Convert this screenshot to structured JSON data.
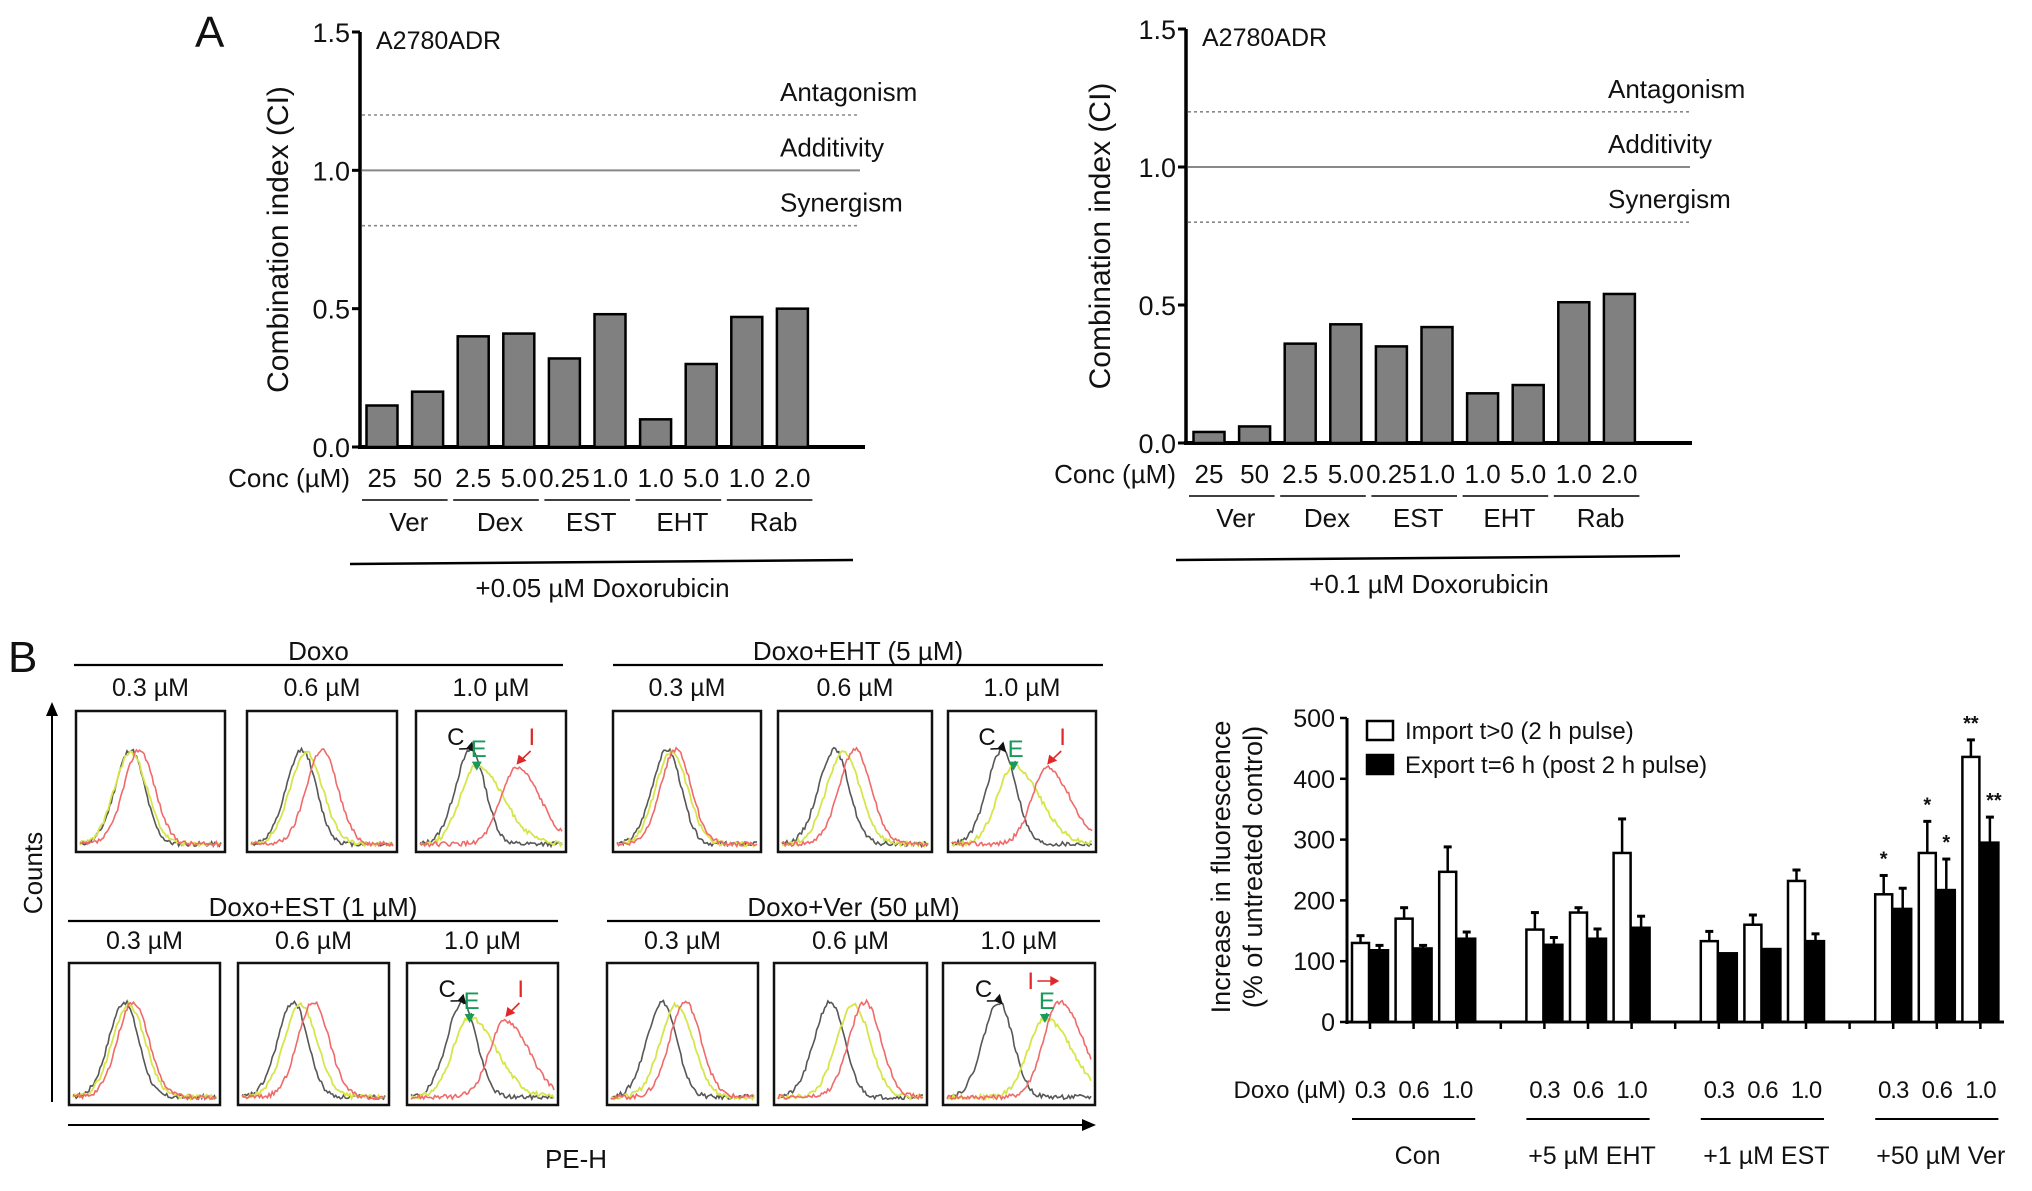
{
  "panel_labels": {
    "a": "A",
    "b": "B"
  },
  "chart_data": [
    {
      "id": "A-left",
      "type": "bar",
      "title": "A2780ADR",
      "ylabel": "Combination index (CI)",
      "ylim": [
        0,
        1.5
      ],
      "yticks": [
        "0.0",
        "0.5",
        "1.0",
        "1.5"
      ],
      "ytick_values": [
        0,
        0.5,
        1.0,
        1.5
      ],
      "xlabel_prefix": "Conc (µM)",
      "categories": [
        "25",
        "50",
        "2.5",
        "5.0",
        "0.25",
        "1.0",
        "1.0",
        "5.0",
        "1.0",
        "2.0"
      ],
      "groups": [
        "Ver",
        "Dex",
        "EST",
        "EHT",
        "Rab"
      ],
      "treatment": "+0.05 µM Doxorubicin",
      "values": [
        0.15,
        0.2,
        0.4,
        0.41,
        0.32,
        0.48,
        0.1,
        0.3,
        0.47,
        0.5
      ],
      "reference_lines": [
        {
          "label": "Antagonism",
          "value": 1.2,
          "style": "dotted"
        },
        {
          "label": "Additivity",
          "value": 1.0,
          "style": "solid"
        },
        {
          "label": "Synergism",
          "value": 0.8,
          "style": "dotted"
        }
      ],
      "bar_color": "#808080",
      "grid": false
    },
    {
      "id": "A-right",
      "type": "bar",
      "title": "A2780ADR",
      "ylabel": "Combination index (CI)",
      "ylim": [
        0,
        1.5
      ],
      "yticks": [
        "0.0",
        "0.5",
        "1.0",
        "1.5"
      ],
      "ytick_values": [
        0,
        0.5,
        1.0,
        1.5
      ],
      "xlabel_prefix": "Conc (µM)",
      "categories": [
        "25",
        "50",
        "2.5",
        "5.0",
        "0.25",
        "1.0",
        "1.0",
        "5.0",
        "1.0",
        "2.0"
      ],
      "groups": [
        "Ver",
        "Dex",
        "EST",
        "EHT",
        "Rab"
      ],
      "treatment": "+0.1 µM Doxorubicin",
      "values": [
        0.04,
        0.06,
        0.36,
        0.43,
        0.35,
        0.42,
        0.18,
        0.21,
        0.51,
        0.54
      ],
      "reference_lines": [
        {
          "label": "Antagonism",
          "value": 1.2,
          "style": "dotted"
        },
        {
          "label": "Additivity",
          "value": 1.0,
          "style": "solid"
        },
        {
          "label": "Synergism",
          "value": 0.8,
          "style": "dotted"
        }
      ],
      "bar_color": "#808080",
      "grid": false
    },
    {
      "id": "B-histograms",
      "type": "histogram-grid",
      "xlabel": "PE-H",
      "ylabel": "Counts",
      "conditions": [
        {
          "title": "Doxo",
          "concs": [
            "0.3 µM",
            "0.6 µM",
            "1.0 µM"
          ],
          "shift_E": [
            0,
            0.03,
            0.04
          ],
          "shift_I": [
            0.06,
            0.14,
            0.32
          ]
        },
        {
          "title": "Doxo+EHT (5 µM)",
          "concs": [
            "0.3 µM",
            "0.6 µM",
            "1.0 µM"
          ],
          "shift_E": [
            0.03,
            0.06,
            0.08
          ],
          "shift_I": [
            0.06,
            0.14,
            0.32
          ]
        },
        {
          "title": "Doxo+EST (1 µM)",
          "concs": [
            "0.3 µM",
            "0.6 µM",
            "1.0 µM"
          ],
          "shift_E": [
            0.03,
            0.05,
            0.05
          ],
          "shift_I": [
            0.06,
            0.14,
            0.3
          ]
        },
        {
          "title": "Doxo+Ver (50 µM)",
          "concs": [
            "0.3 µM",
            "0.6 µM",
            "1.0 µM"
          ],
          "shift_E": [
            0.1,
            0.16,
            0.32
          ],
          "shift_I": [
            0.16,
            0.24,
            0.42
          ]
        }
      ],
      "curve_labels": {
        "C": "C",
        "E": "E",
        "I": "I"
      },
      "curve_colors": {
        "C": "#3a3a3a",
        "E": "#d6e64a",
        "I": "#f06a6a"
      },
      "label_colors": {
        "C": "#111111",
        "E": "#1a9a5a",
        "I": "#e02828"
      }
    },
    {
      "id": "B-bars",
      "type": "bar",
      "ylabel_line1": "Increase in fluorescence",
      "ylabel_line2": "(% of untreated control)",
      "ylim": [
        0,
        500
      ],
      "yticks": [
        "0",
        "100",
        "200",
        "300",
        "400",
        "500"
      ],
      "ytick_values": [
        0,
        100,
        200,
        300,
        400,
        500
      ],
      "xlabel_prefix": "Doxo (µM)",
      "categories": [
        "0.3",
        "0.6",
        "1.0"
      ],
      "groups": [
        "Con",
        "+5 µM EHT",
        "+1 µM EST",
        "+50 µM Ver"
      ],
      "legend": {
        "position": "top-left"
      },
      "series": [
        {
          "name": "Import t>0 (2 h pulse)",
          "color": "#ffffff",
          "values": [
            [
              130,
              170,
              247
            ],
            [
              152,
              180,
              278
            ],
            [
              133,
              160,
              232
            ],
            [
              210,
              278,
              436
            ]
          ],
          "errors": [
            [
              12,
              18,
              41
            ],
            [
              28,
              8,
              56
            ],
            [
              16,
              16,
              18
            ],
            [
              31,
              52,
              28
            ]
          ],
          "significance": [
            [
              "",
              "",
              ""
            ],
            [
              "",
              "",
              ""
            ],
            [
              "",
              "",
              ""
            ],
            [
              "*",
              "*",
              "**"
            ]
          ]
        },
        {
          "name": "Export t=6 h (post 2 h pulse)",
          "color": "#000000",
          "values": [
            [
              118,
              121,
              137
            ],
            [
              127,
              137,
              155
            ],
            [
              113,
              120,
              133
            ],
            [
              186,
              217,
              295
            ]
          ],
          "errors": [
            [
              8,
              5,
              11
            ],
            [
              12,
              16,
              19
            ],
            [
              0,
              0,
              12
            ],
            [
              34,
              51,
              42
            ]
          ],
          "significance": [
            [
              "",
              "",
              ""
            ],
            [
              "",
              "",
              ""
            ],
            [
              "",
              "",
              ""
            ],
            [
              "",
              "*",
              "**"
            ]
          ]
        }
      ],
      "grid": false
    }
  ]
}
